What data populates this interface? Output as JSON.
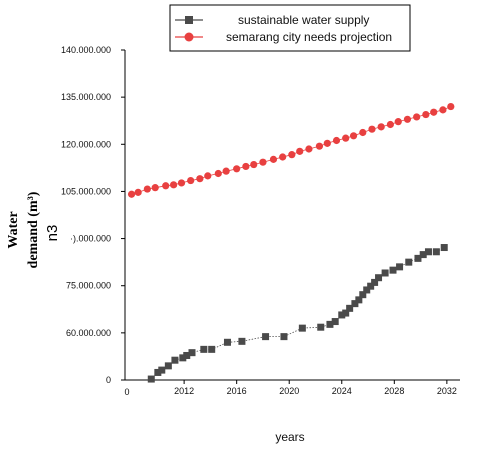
{
  "chart_data": {
    "type": "scatter",
    "title": "",
    "xlabel": "years",
    "ylabel_lines": [
      "Water",
      "demand (m³)"
    ],
    "ylabel_unit": "n3",
    "xlim": [
      2007.5,
      2033
    ],
    "yaxis": {
      "tick_labels": [
        "0",
        "60.000.000",
        "75.000.000",
        "·).000.000",
        "105.000.000",
        "120.000.000",
        "135.000.000",
        "140.000.000"
      ],
      "tick_levels": [
        0,
        1,
        2,
        3,
        4,
        5,
        6,
        7
      ],
      "y_range_in_levels": [
        0,
        7
      ]
    },
    "xaxis": {
      "origin_label": "0",
      "tick_labels": [
        "2012",
        "2016",
        "2020",
        "2024",
        "2028",
        "2032"
      ],
      "tick_values": [
        2012,
        2016,
        2020,
        2024,
        2028,
        2032
      ]
    },
    "grid": false,
    "legend_position": "top",
    "series": [
      {
        "name": "sustainable water supply",
        "color": "#4a4a4a",
        "marker": "square",
        "x": [
          2009.5,
          2010,
          2010.3,
          2010.8,
          2011.3,
          2011.9,
          2012.2,
          2012.6,
          2013.5,
          2014.1,
          2015.3,
          2016.4,
          2018.2,
          2019.6,
          2021.0,
          2022.4,
          2023.1,
          2023.5,
          2024.0,
          2024.3,
          2024.6,
          2025.0,
          2025.3,
          2025.6,
          2025.9,
          2026.2,
          2026.5,
          2026.8,
          2027.3,
          2027.9,
          2028.4,
          2029.1,
          2029.8,
          2030.2,
          2030.6,
          2031.2,
          2031.8
        ],
        "y_levels": [
          0.02,
          0.16,
          0.21,
          0.3,
          0.42,
          0.47,
          0.52,
          0.58,
          0.65,
          0.65,
          0.8,
          0.82,
          0.92,
          0.92,
          1.1,
          1.12,
          1.18,
          1.24,
          1.38,
          1.42,
          1.52,
          1.62,
          1.7,
          1.81,
          1.91,
          1.99,
          2.07,
          2.17,
          2.27,
          2.33,
          2.4,
          2.5,
          2.58,
          2.66,
          2.72,
          2.72,
          2.81
        ]
      },
      {
        "name": "semarang city needs projection",
        "color": "#e84040",
        "marker": "circle",
        "x": [
          2008.0,
          2008.5,
          2009.2,
          2009.8,
          2010.6,
          2011.2,
          2011.8,
          2012.5,
          2013.2,
          2013.8,
          2014.6,
          2015.2,
          2016.0,
          2016.7,
          2017.3,
          2018.0,
          2018.8,
          2019.5,
          2020.2,
          2020.8,
          2021.5,
          2022.3,
          2022.9,
          2023.6,
          2024.3,
          2024.9,
          2025.6,
          2026.3,
          2027.0,
          2027.7,
          2028.3,
          2029.0,
          2029.7,
          2030.4,
          2031.0,
          2031.7,
          2032.3
        ],
        "y_levels": [
          3.94,
          3.98,
          4.05,
          4.08,
          4.12,
          4.14,
          4.18,
          4.23,
          4.27,
          4.33,
          4.38,
          4.43,
          4.48,
          4.53,
          4.57,
          4.62,
          4.68,
          4.73,
          4.78,
          4.85,
          4.9,
          4.96,
          5.02,
          5.08,
          5.13,
          5.18,
          5.25,
          5.32,
          5.37,
          5.42,
          5.48,
          5.53,
          5.58,
          5.63,
          5.68,
          5.73,
          5.8
        ]
      }
    ]
  }
}
